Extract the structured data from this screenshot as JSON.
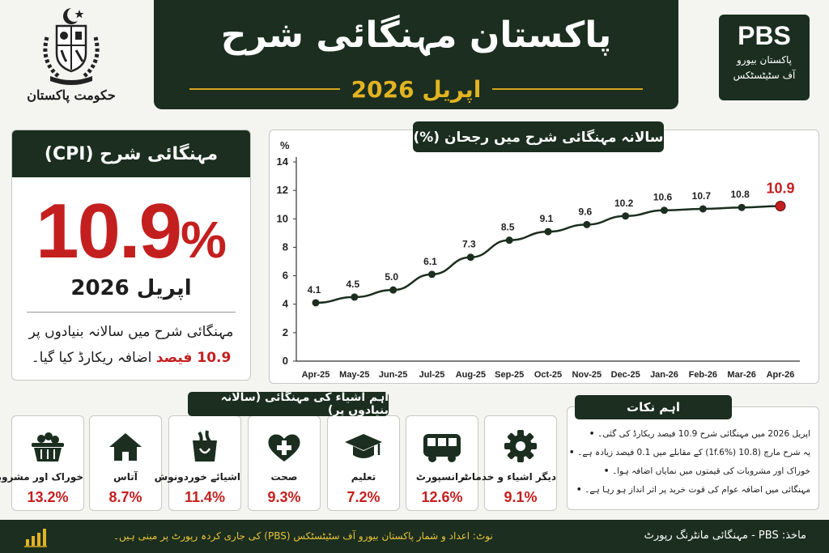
{
  "header": {
    "govt_caption": "حکومت پاکستان",
    "title": "پاکستان مہنگائی شرح",
    "subtitle": "اپریل 2026",
    "pbs_abbr": "PBS",
    "pbs_name_line1": "پاکستان بیورو",
    "pbs_name_line2": "آف سٹیٹسٹکس"
  },
  "cpi_card": {
    "heading": "مہنگائی شرح (CPI)",
    "value": "10.9",
    "percent_sign": "%",
    "month": "اپریل 2026",
    "desc_line1": "مہنگائی شرح میں سالانہ بنیادوں پر",
    "desc_highlight": "10.9 فیصد",
    "desc_line2_rest": " اضافہ ریکارڈ کیا گیا۔"
  },
  "chart_data": {
    "type": "line",
    "title": "سالانہ مہنگائی شرح میں رجحان (%)",
    "ylabel": "%",
    "xlabel": "",
    "ylim": [
      0,
      14
    ],
    "yticks": [
      0,
      2,
      4,
      6,
      8,
      10,
      12,
      14
    ],
    "grid": false,
    "categories": [
      "Apr-25",
      "May-25",
      "Jun-25",
      "Jul-25",
      "Aug-25",
      "Sep-25",
      "Oct-25",
      "Nov-25",
      "Dec-25",
      "Jan-26",
      "Feb-26",
      "Mar-26",
      "Apr-26"
    ],
    "series": [
      {
        "values": [
          4.1,
          4.5,
          5.0,
          6.1,
          7.3,
          8.5,
          9.1,
          9.6,
          10.2,
          10.6,
          10.7,
          10.8,
          10.9
        ]
      }
    ],
    "line_color": "#1b2e1f",
    "highlight_color": "#c41f1f"
  },
  "items_section": {
    "title": "اہم اشیاء کی مہنگائی (سالانہ بنیادوں پر)",
    "items": [
      {
        "label": "خوراک اور مشروبات",
        "value": "13.2%",
        "icon": "food-basket-icon"
      },
      {
        "label": "آتاس",
        "value": "8.7%",
        "icon": "house-icon"
      },
      {
        "label": "اشیائے خوردونوش",
        "value": "11.4%",
        "icon": "grocery-bag-icon"
      },
      {
        "label": "صحت",
        "value": "9.3%",
        "icon": "health-heart-icon"
      },
      {
        "label": "تعلیم",
        "value": "7.2%",
        "icon": "graduation-cap-icon"
      },
      {
        "label": "ٹرانسپورٹ",
        "value": "12.6%",
        "icon": "bus-icon"
      },
      {
        "label": "دیگر اشیاء و خدمات",
        "value": "9.1%",
        "icon": "gear-icon"
      }
    ]
  },
  "key_points": {
    "title": "اہم نکات",
    "points": [
      "اپریل 2026 میں مہنگائی شرح 10.9 فیصد ریکارڈ کی گئی۔",
      "یہ شرح مارچ (10.8 (1f.6%) کے مقابلے میں 0.1 فیصد زیادہ ہے۔",
      "خوراک اور مشروبات کی قیمتوں میں نمایاں اضافہ ہوا۔",
      "مہنگائی میں اضافہ عوام کی قوت خرید پر اثر انداز ہو رہا ہے۔"
    ]
  },
  "footer": {
    "source": "ماخذ: PBS - مہنگائی مانٹرنگ رپورٹ",
    "note": "نوٹ: اعداد و شمار پاکستان بیورو آف سٹیٹسٹکس (PBS) کی جاری کردہ رپورٹ پر مبنی ہیں۔"
  },
  "colors": {
    "dark_green": "#1b2e1f",
    "red": "#c41f1f",
    "gold": "#e2b422"
  }
}
